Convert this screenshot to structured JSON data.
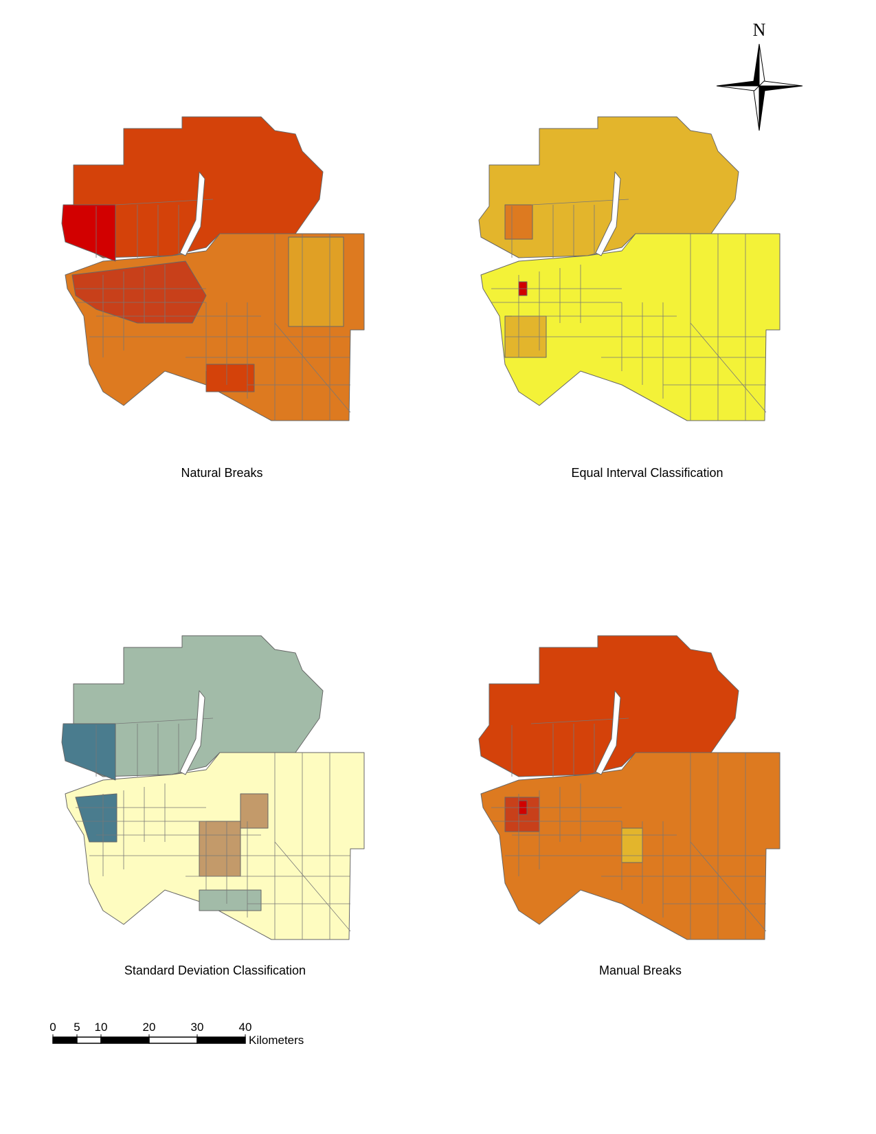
{
  "maps": [
    {
      "title": "Natural Breaks"
    },
    {
      "title": "Equal Interval Classification"
    },
    {
      "title": "Standard Deviation Classification"
    },
    {
      "title": "Manual Breaks"
    }
  ],
  "north_arrow": {
    "label": "N"
  },
  "scale_bar": {
    "ticks": [
      0,
      5,
      10,
      20,
      30,
      40
    ],
    "unit": "Kilometers"
  }
}
